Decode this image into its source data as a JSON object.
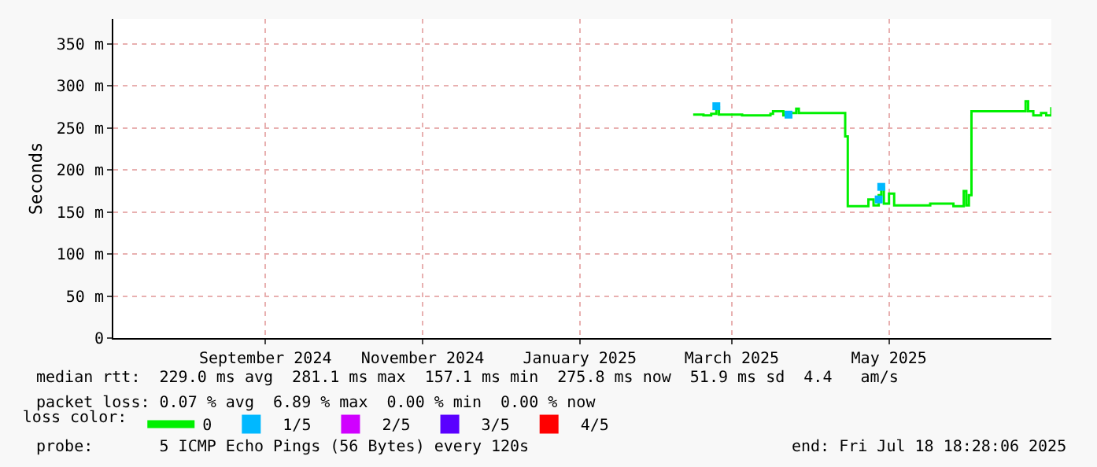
{
  "chart_data": {
    "type": "step",
    "ylabel": "Seconds",
    "xlim": [
      "2024-07-19",
      "2025-07-18"
    ],
    "xticks": [
      {
        "value": "2024-09-16",
        "label": "September 2024"
      },
      {
        "value": "2024-11-16",
        "label": "November 2024"
      },
      {
        "value": "2025-01-16",
        "label": "January 2025"
      },
      {
        "value": "2025-03-16",
        "label": "March 2025"
      },
      {
        "value": "2025-05-16",
        "label": "May 2025"
      }
    ],
    "ylim": [
      0,
      380
    ],
    "yticks": [
      {
        "value": 0,
        "label": "0"
      },
      {
        "value": 50,
        "label": "50 m"
      },
      {
        "value": 100,
        "label": "100 m"
      },
      {
        "value": 150,
        "label": "150 m"
      },
      {
        "value": 200,
        "label": "200 m"
      },
      {
        "value": 250,
        "label": "250 m"
      },
      {
        "value": 300,
        "label": "300 m"
      },
      {
        "value": 350,
        "label": "350 m"
      }
    ],
    "grid": true,
    "legend": "bottom",
    "legend_title": "loss color:",
    "series": [
      {
        "name": "0",
        "color": "#00f000",
        "marker": "none",
        "x": [
          "2025-03-01",
          "2025-03-05",
          "2025-03-08",
          "2025-03-10",
          "2025-03-11",
          "2025-03-20",
          "2025-03-31",
          "2025-04-01",
          "2025-04-05",
          "2025-04-08",
          "2025-04-10",
          "2025-04-11",
          "2025-04-28",
          "2025-04-29",
          "2025-04-30",
          "2025-05-05",
          "2025-05-08",
          "2025-05-10",
          "2025-05-12",
          "2025-05-13",
          "2025-05-14",
          "2025-05-16",
          "2025-05-18",
          "2025-05-25",
          "2025-06-01",
          "2025-06-10",
          "2025-06-13",
          "2025-06-14",
          "2025-06-15",
          "2025-06-16",
          "2025-06-17",
          "2025-06-30",
          "2025-07-05",
          "2025-07-08",
          "2025-07-09",
          "2025-07-11",
          "2025-07-14",
          "2025-07-16",
          "2025-07-18"
        ],
        "values": [
          266,
          265,
          267,
          275,
          266,
          265,
          267,
          270,
          265,
          268,
          273,
          268,
          268,
          240,
          157,
          157,
          165,
          158,
          170,
          180,
          160,
          172,
          158,
          158,
          160,
          157,
          157,
          175,
          158,
          170,
          270,
          270,
          270,
          282,
          270,
          265,
          268,
          265,
          275
        ]
      },
      {
        "name": "1/5",
        "color": "#00b8ff",
        "type": "scatter",
        "marker": "square",
        "x": [
          "2025-03-10",
          "2025-04-07",
          "2025-05-12",
          "2025-05-13"
        ],
        "values": [
          276,
          266,
          165,
          180
        ]
      },
      {
        "name": "2/5",
        "color": "#d000ff",
        "type": "scatter",
        "marker": "square",
        "values": [
          null
        ]
      },
      {
        "name": "3/5",
        "color": "#5a00ff",
        "type": "scatter",
        "marker": "square",
        "values": [
          null
        ]
      },
      {
        "name": "4/5",
        "color": "#ff0000",
        "type": "scatter",
        "marker": "square",
        "values": [
          null
        ]
      }
    ],
    "annotations": [
      "median rtt:  229.0 ms avg  281.1 ms max  157.1 ms min  275.8 ms now  51.9 ms sd  4.4   am/s",
      "packet loss: 0.07 % avg  6.89 % max  0.00 % min  0.00 % now",
      "probe:       5 ICMP Echo Pings (56 Bytes) every 120s",
      "end: Fri Jul 18 18:28:06 2025"
    ]
  }
}
